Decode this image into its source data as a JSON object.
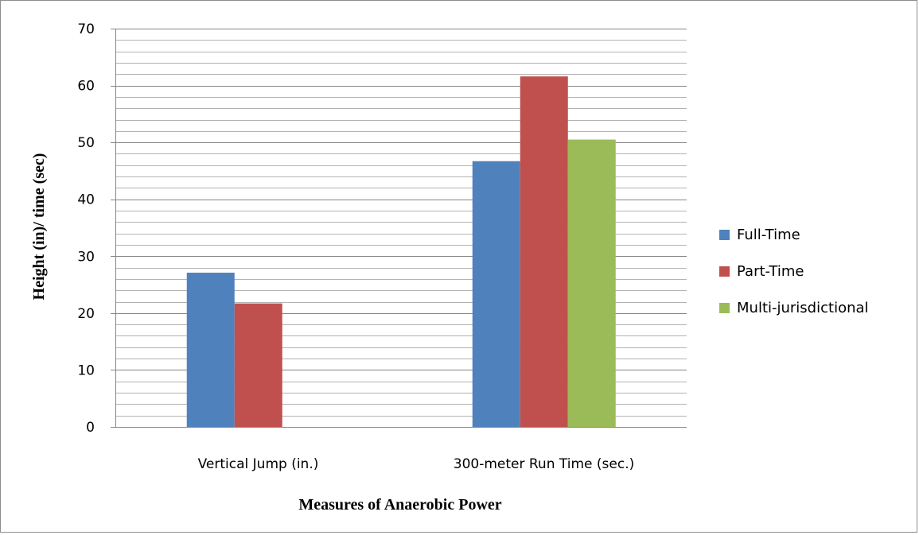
{
  "chart_data": {
    "type": "bar",
    "categories": [
      "Vertical Jump (in.)",
      "300-meter Run Time (sec.)"
    ],
    "series": [
      {
        "name": "Full-Time",
        "color": "#4f81bd",
        "values": [
          27.1,
          46.7
        ]
      },
      {
        "name": "Part-Time",
        "color": "#c0504d",
        "values": [
          21.7,
          61.6
        ]
      },
      {
        "name": "Multi-jurisdictional",
        "color": "#9bbb59",
        "values": [
          null,
          50.5
        ]
      }
    ],
    "title": "",
    "xlabel": "Measures of Anaerobic Power",
    "ylabel": "Height (in)/ time (sec)",
    "ylim": [
      0,
      70
    ],
    "yticks": [
      0,
      10,
      20,
      30,
      40,
      50,
      60,
      70
    ],
    "minor_gridlines_per_major": 5,
    "grid": true,
    "legend_position": "right"
  }
}
